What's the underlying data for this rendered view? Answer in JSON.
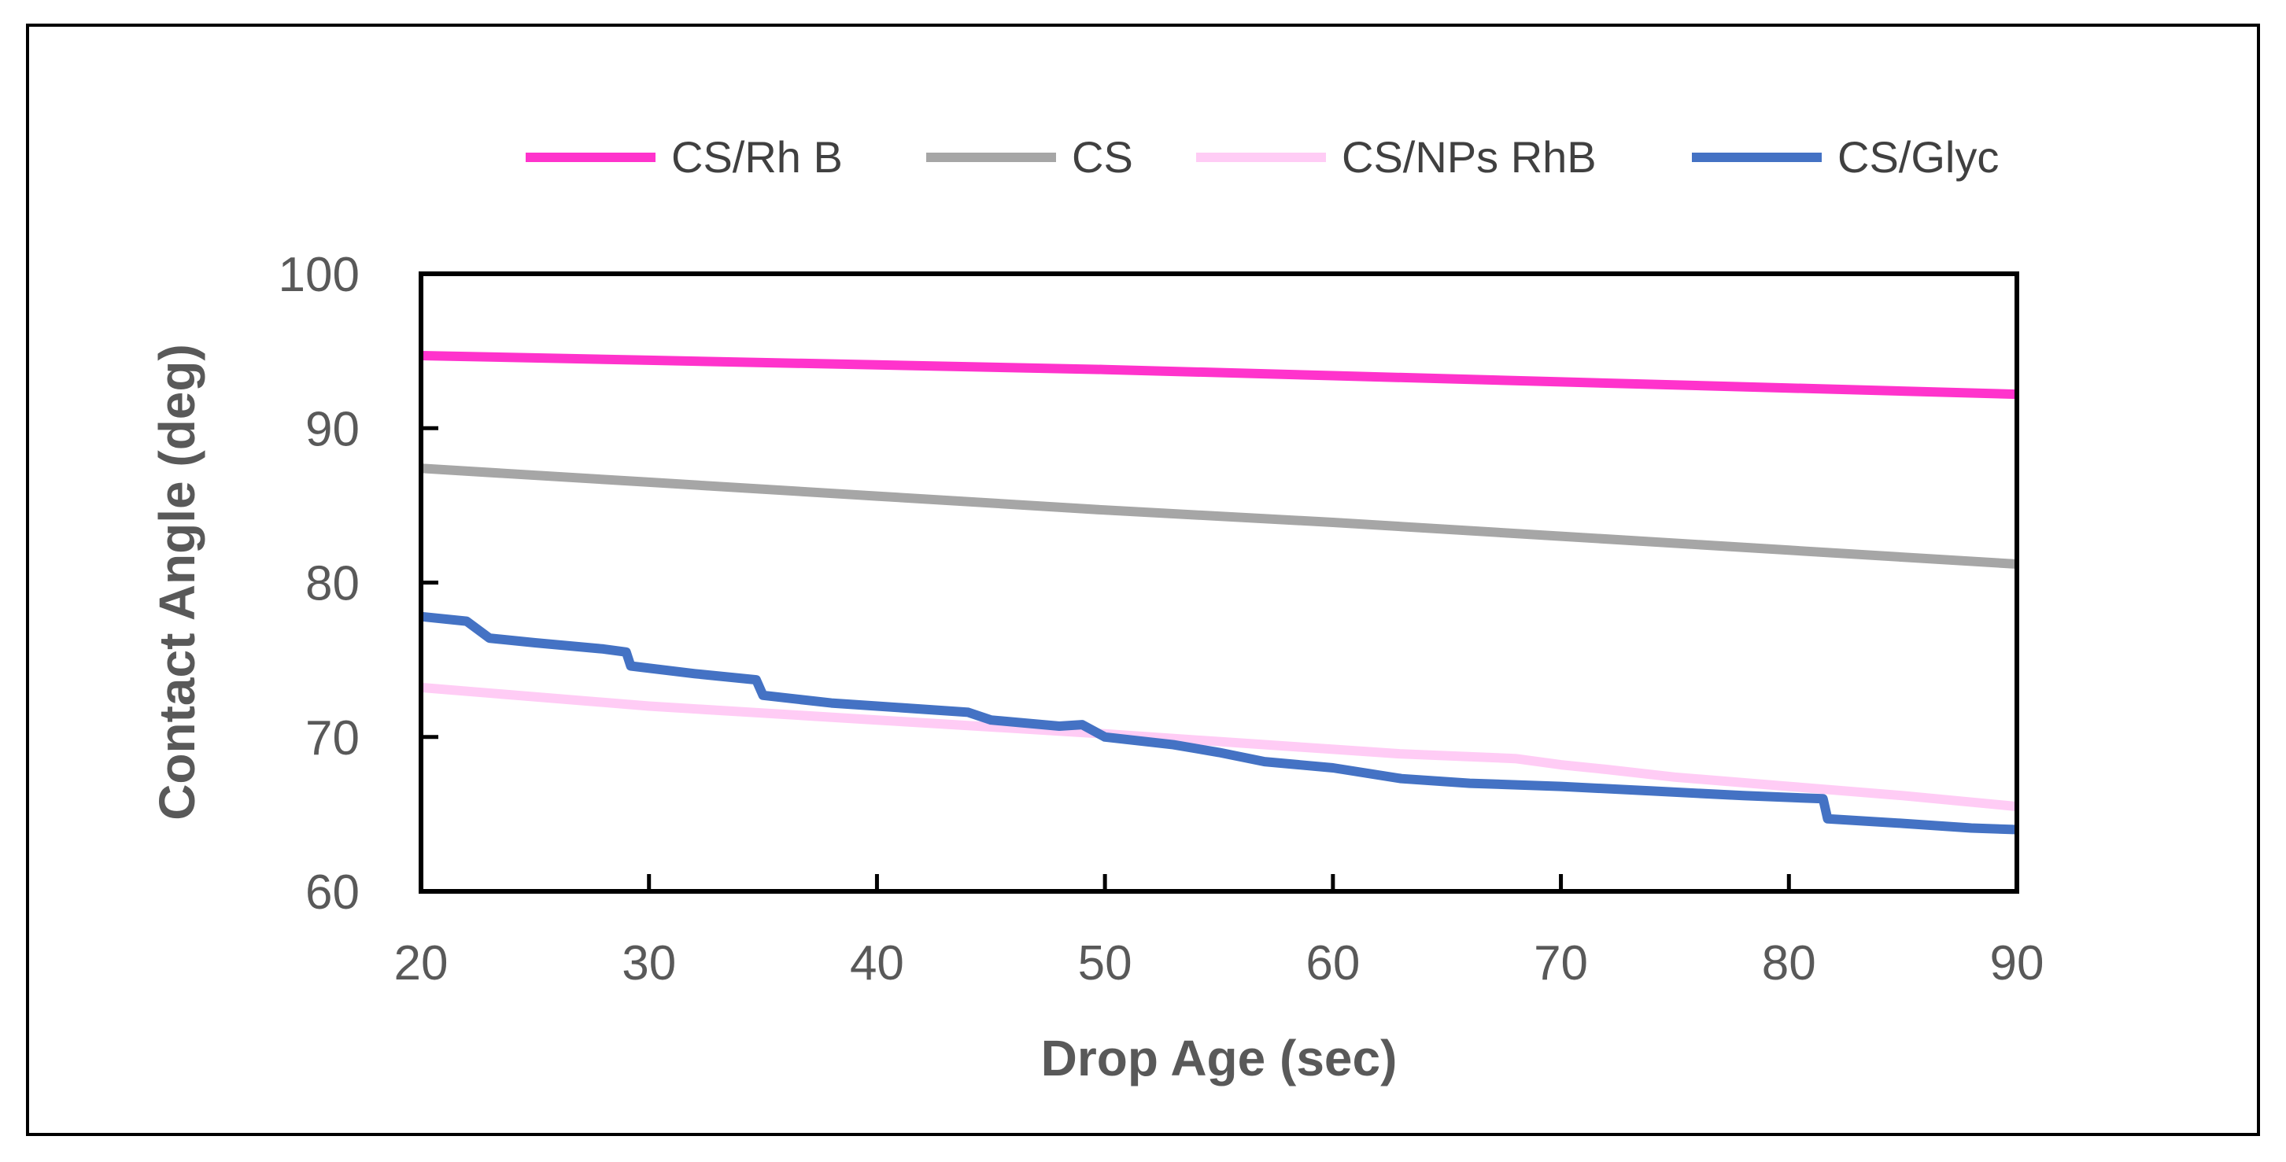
{
  "chart_data": {
    "type": "line",
    "title": "",
    "xlabel": "Drop Age (sec)",
    "ylabel": "Contact Angle (deg)",
    "xlim": [
      20,
      90
    ],
    "ylim": [
      60,
      100
    ],
    "x_ticks": [
      20,
      30,
      40,
      50,
      60,
      70,
      80,
      90
    ],
    "y_ticks": [
      60,
      70,
      80,
      90,
      100
    ],
    "grid": false,
    "legend_position": "top",
    "series": [
      {
        "name": "CS/Rh B",
        "color": "#ff33cc",
        "points": [
          [
            20,
            94.7
          ],
          [
            30,
            94.4
          ],
          [
            40,
            94.1
          ],
          [
            50,
            93.8
          ],
          [
            60,
            93.4
          ],
          [
            70,
            93.0
          ],
          [
            80,
            92.6
          ],
          [
            90,
            92.2
          ]
        ]
      },
      {
        "name": "CS",
        "color": "#a6a6a6",
        "points": [
          [
            20,
            87.4
          ],
          [
            30,
            86.5
          ],
          [
            40,
            85.6
          ],
          [
            50,
            84.7
          ],
          [
            60,
            83.9
          ],
          [
            70,
            83.0
          ],
          [
            80,
            82.1
          ],
          [
            90,
            81.2
          ]
        ]
      },
      {
        "name": "CS/NPs RhB",
        "color": "#ffccf5",
        "points": [
          [
            20,
            73.2
          ],
          [
            30,
            72.0
          ],
          [
            40,
            71.1
          ],
          [
            50,
            70.2
          ],
          [
            60,
            69.2
          ],
          [
            63,
            68.9
          ],
          [
            68,
            68.6
          ],
          [
            70,
            68.2
          ],
          [
            72,
            67.9
          ],
          [
            75,
            67.4
          ],
          [
            80,
            66.8
          ],
          [
            85,
            66.2
          ],
          [
            90,
            65.5
          ]
        ]
      },
      {
        "name": "CS/Glyc",
        "color": "#4472c4",
        "points": [
          [
            20,
            77.8
          ],
          [
            22,
            77.5
          ],
          [
            23,
            76.4
          ],
          [
            25,
            76.1
          ],
          [
            28,
            75.7
          ],
          [
            29,
            75.5
          ],
          [
            29.2,
            74.6
          ],
          [
            32,
            74.1
          ],
          [
            34.7,
            73.7
          ],
          [
            35,
            72.7
          ],
          [
            38,
            72.2
          ],
          [
            40,
            72.0
          ],
          [
            44,
            71.6
          ],
          [
            45,
            71.1
          ],
          [
            48,
            70.7
          ],
          [
            49,
            70.8
          ],
          [
            50,
            70.0
          ],
          [
            53,
            69.5
          ],
          [
            55,
            69.0
          ],
          [
            57,
            68.4
          ],
          [
            60,
            68.0
          ],
          [
            63,
            67.3
          ],
          [
            66,
            67.0
          ],
          [
            70,
            66.8
          ],
          [
            74,
            66.5
          ],
          [
            78,
            66.2
          ],
          [
            81.5,
            66.0
          ],
          [
            81.7,
            64.7
          ],
          [
            85,
            64.4
          ],
          [
            88,
            64.1
          ],
          [
            90,
            64.0
          ]
        ]
      }
    ]
  }
}
